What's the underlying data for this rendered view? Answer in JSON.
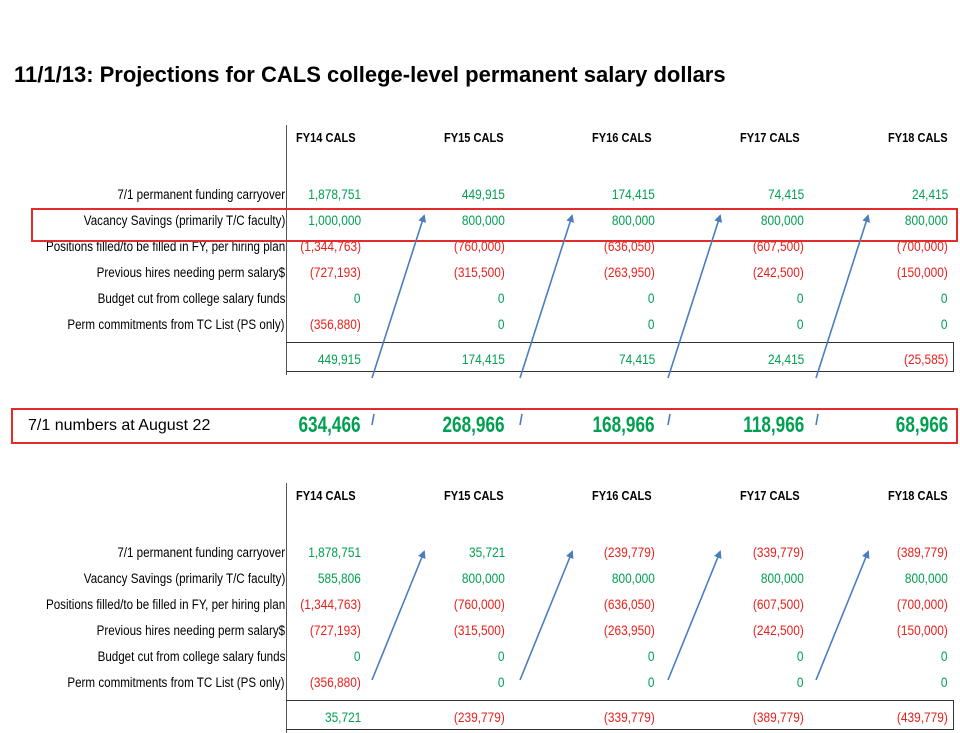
{
  "slide": {
    "title": "11/1/13: Projections for CALS college-level permanent salary dollars",
    "august_label": "7/1 numbers at August 22"
  },
  "columns": [
    "FY14 CALS",
    "FY15 CALS",
    "FY16 CALS",
    "FY17 CALS",
    "FY18 CALS"
  ],
  "row_labels": [
    "7/1 permanent funding carryover",
    "Vacancy Savings (primarily T/C faculty)",
    "Positions filled/to be filled in FY, per hiring plan",
    "Previous hires needing perm salary$",
    "Budget cut from college salary funds",
    "Perm commitments from TC List (PS only)"
  ],
  "table1": {
    "rows": [
      [
        "1,878,751",
        "449,915",
        "174,415",
        "74,415",
        "24,415"
      ],
      [
        "1,000,000",
        "800,000",
        "800,000",
        "800,000",
        "800,000"
      ],
      [
        "(1,344,763)",
        "(760,000)",
        "(636,050)",
        "(607,500)",
        "(700,000)"
      ],
      [
        "(727,193)",
        "(315,500)",
        "(263,950)",
        "(242,500)",
        "(150,000)"
      ],
      [
        "0",
        "0",
        "0",
        "0",
        "0"
      ],
      [
        "(356,880)",
        "0",
        "0",
        "0",
        "0"
      ]
    ],
    "totals": [
      "449,915",
      "174,415",
      "74,415",
      "24,415",
      "(25,585)"
    ]
  },
  "august_values": [
    "634,466",
    "268,966",
    "168,966",
    "118,966",
    "68,966"
  ],
  "table2": {
    "rows": [
      [
        "1,878,751",
        "35,721",
        "(239,779)",
        "(339,779)",
        "(389,779)"
      ],
      [
        "585,806",
        "800,000",
        "800,000",
        "800,000",
        "800,000"
      ],
      [
        "(1,344,763)",
        "(760,000)",
        "(636,050)",
        "(607,500)",
        "(700,000)"
      ],
      [
        "(727,193)",
        "(315,500)",
        "(263,950)",
        "(242,500)",
        "(150,000)"
      ],
      [
        "0",
        "0",
        "0",
        "0",
        "0"
      ],
      [
        "(356,880)",
        "0",
        "0",
        "0",
        "0"
      ]
    ],
    "totals": [
      "35,721",
      "(239,779)",
      "(339,779)",
      "(389,779)",
      "(439,779)"
    ]
  },
  "colors": {
    "positive": "#00a050",
    "negative": "#e8201c",
    "highlight_box": "#e52a2a",
    "arrow": "#4a7ebf"
  }
}
